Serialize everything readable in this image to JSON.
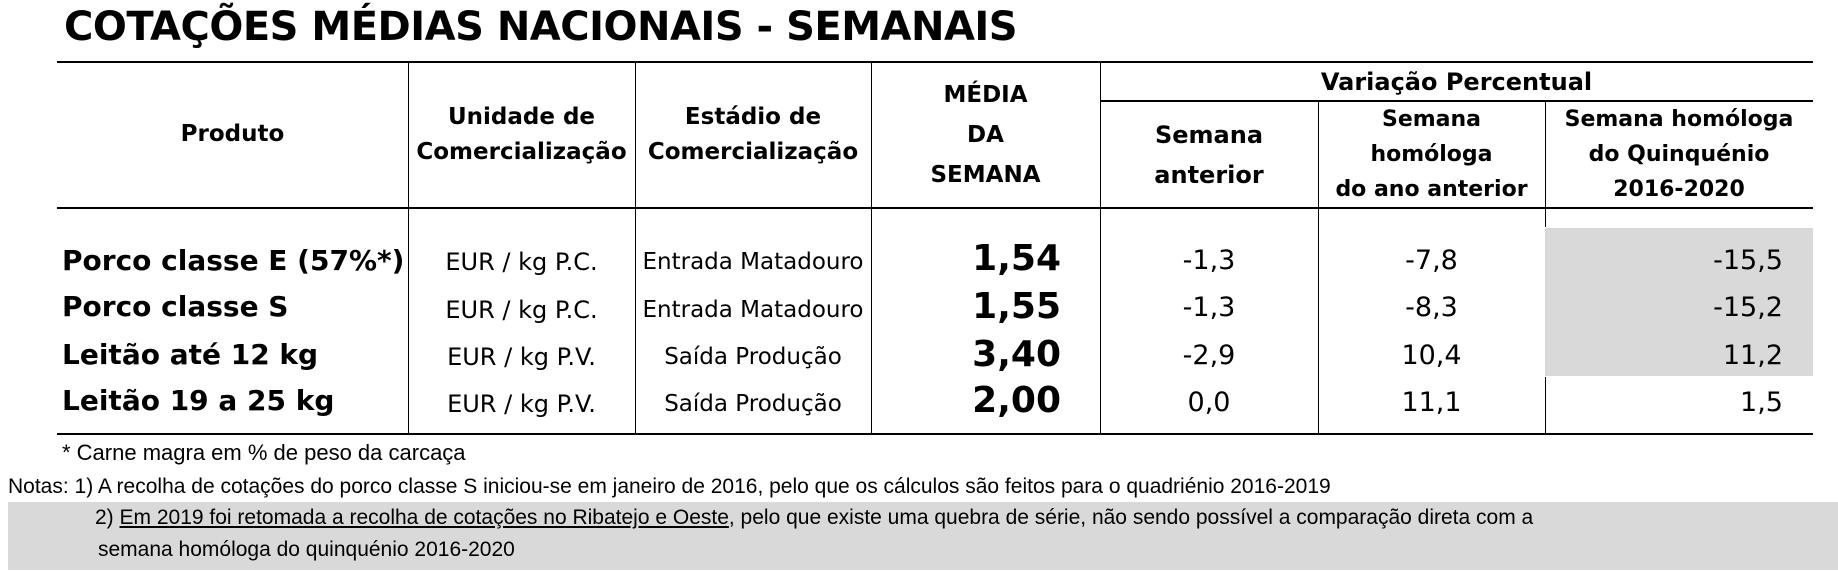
{
  "title": "COTAÇÕES MÉDIAS NACIONAIS - SEMANAIS",
  "headers": {
    "produto": "Produto",
    "unidade": [
      "Unidade de",
      "Comercialização"
    ],
    "estadio": [
      "Estádio de",
      "Comercialização"
    ],
    "media": [
      "MÉDIA",
      "DA",
      "SEMANA"
    ],
    "variacao": "Variação Percentual",
    "semana_anterior": [
      "Semana",
      "anterior"
    ],
    "semana_homologa": [
      "Semana",
      "homóloga",
      "do ano anterior"
    ],
    "quinquenio": [
      "Semana homóloga",
      "do Quinquénio",
      "2016-2020"
    ]
  },
  "rows": [
    {
      "produto": "Porco classe E (57%*)",
      "unidade": "EUR / kg P.C.",
      "estadio": "Entrada Matadouro",
      "media": "1,54",
      "semana_anterior": "-1,3",
      "homologa": "-7,8",
      "quinquenio": "-15,5"
    },
    {
      "produto": "Porco classe S",
      "unidade": "EUR / kg P.C.",
      "estadio": "Entrada Matadouro",
      "media": "1,55",
      "semana_anterior": "-1,3",
      "homologa": "-8,3",
      "quinquenio": "-15,2"
    },
    {
      "produto": "Leitão até 12 kg",
      "unidade": "EUR / kg P.V.",
      "estadio": "Saída Produção",
      "media": "3,40",
      "semana_anterior": "-2,9",
      "homologa": "10,4",
      "quinquenio": "11,2"
    },
    {
      "produto": "Leitão 19 a 25 kg",
      "unidade": "EUR / kg P.V.",
      "estadio": "Saída Produção",
      "media": "2,00",
      "semana_anterior": "0,0",
      "homologa": "11,1",
      "quinquenio": "1,5"
    }
  ],
  "footnote": "* Carne magra em % de peso da carcaça",
  "notes": {
    "note1": "Notas: 1) A recolha de cotações do porco classe S iniciou-se em janeiro de 2016, pelo que os cálculos são feitos para o quadriénio 2016-2019",
    "note2_prefix": "2) ",
    "note2_underlined": "Em 2019 foi retomada a recolha de cotações no Ribatejo e Oeste",
    "note2_rest": ", pelo que existe uma quebra de série, não sendo possível a comparação direta com a",
    "note2_line2": "semana homóloga do quinquénio 2016-2020"
  },
  "colors": {
    "grey_fill": "#d9d9d9",
    "text": "#000000"
  }
}
